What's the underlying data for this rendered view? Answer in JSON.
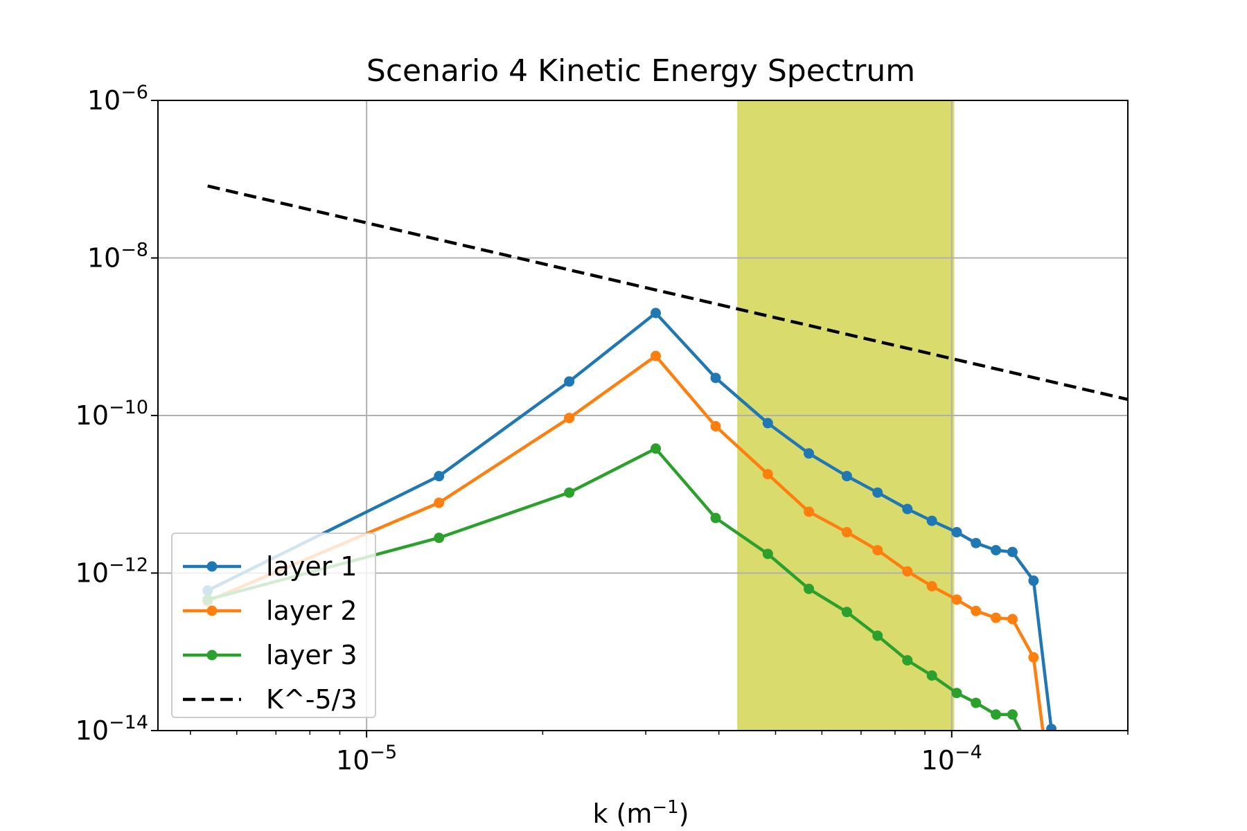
{
  "chart_data": {
    "type": "line",
    "title": "Scenario 4 Kinetic Energy Spectrum",
    "xlabel": "k (m",
    "xlabel_sup": "−1",
    "xlabel_end": ")",
    "ylabel": "",
    "xscale": "log",
    "yscale": "log",
    "xlim": [
      4.4e-06,
      0.0002
    ],
    "ylim": [
      1e-14,
      1e-06
    ],
    "grid": true,
    "legend_position": "lower-left",
    "x_ticks": [
      {
        "value": 1e-05,
        "base": "10",
        "exp": "−5"
      },
      {
        "value": 0.0001,
        "base": "10",
        "exp": "−4"
      }
    ],
    "y_ticks": [
      {
        "value": 1e-06,
        "base": "10",
        "exp": "−6"
      },
      {
        "value": 1e-08,
        "base": "10",
        "exp": "−8"
      },
      {
        "value": 1e-10,
        "base": "10",
        "exp": "−10"
      },
      {
        "value": 1e-12,
        "base": "10",
        "exp": "−12"
      },
      {
        "value": 1e-14,
        "base": "10",
        "exp": "−14"
      }
    ],
    "shaded_region": {
      "x": [
        4.3e-05,
        0.000101
      ],
      "color": "#d2d552"
    },
    "series": [
      {
        "name": "layer 1",
        "color": "#1f77b4",
        "style": "line-marker",
        "x": [
          5.35e-06,
          1.33e-05,
          2.22e-05,
          3.12e-05,
          3.95e-05,
          4.85e-05,
          5.7e-05,
          6.62e-05,
          7.47e-05,
          8.4e-05,
          9.25e-05,
          0.000102,
          0.00011,
          0.000119,
          0.000127,
          0.000138,
          0.000148
        ],
        "y": [
          6e-13,
          1.7e-11,
          2.7e-10,
          2e-09,
          3e-10,
          8e-11,
          3.3e-11,
          1.7e-11,
          1.05e-11,
          6.5e-12,
          4.6e-12,
          3.3e-12,
          2.4e-12,
          1.95e-12,
          1.85e-12,
          8e-13,
          1.05e-14
        ]
      },
      {
        "name": "layer 2",
        "color": "#ff7f0e",
        "style": "line-marker",
        "x": [
          5.35e-06,
          1.33e-05,
          2.22e-05,
          3.12e-05,
          3.95e-05,
          4.85e-05,
          5.7e-05,
          6.62e-05,
          7.47e-05,
          8.4e-05,
          9.25e-05,
          0.000102,
          0.00011,
          0.000119,
          0.000127,
          0.000138,
          0.000144
        ],
        "y": [
          4.4e-13,
          7.8e-12,
          9.3e-11,
          5.7e-10,
          7.3e-11,
          1.8e-11,
          6e-12,
          3.3e-12,
          1.95e-12,
          1.05e-12,
          6.8e-13,
          4.6e-13,
          3.3e-13,
          2.7e-13,
          2.6e-13,
          8.5e-14,
          7e-15
        ]
      },
      {
        "name": "layer 3",
        "color": "#2ca02c",
        "style": "line-marker",
        "x": [
          5.35e-06,
          1.33e-05,
          2.22e-05,
          3.12e-05,
          3.95e-05,
          4.85e-05,
          5.7e-05,
          6.62e-05,
          7.47e-05,
          8.4e-05,
          9.25e-05,
          0.000102,
          0.00011,
          0.000119,
          0.000127,
          0.000133
        ],
        "y": [
          4.6e-13,
          2.8e-12,
          1.05e-11,
          3.8e-11,
          5e-12,
          1.75e-12,
          6.3e-13,
          3.2e-13,
          1.6e-13,
          7.8e-14,
          5e-14,
          3e-14,
          2.25e-14,
          1.6e-14,
          1.6e-14,
          8e-15
        ]
      },
      {
        "name": "K^-5/3",
        "color": "#000000",
        "style": "dashed",
        "x": [
          5.35e-06,
          0.0002
        ],
        "y": [
          8.2e-08,
          1.6e-10
        ]
      }
    ]
  }
}
